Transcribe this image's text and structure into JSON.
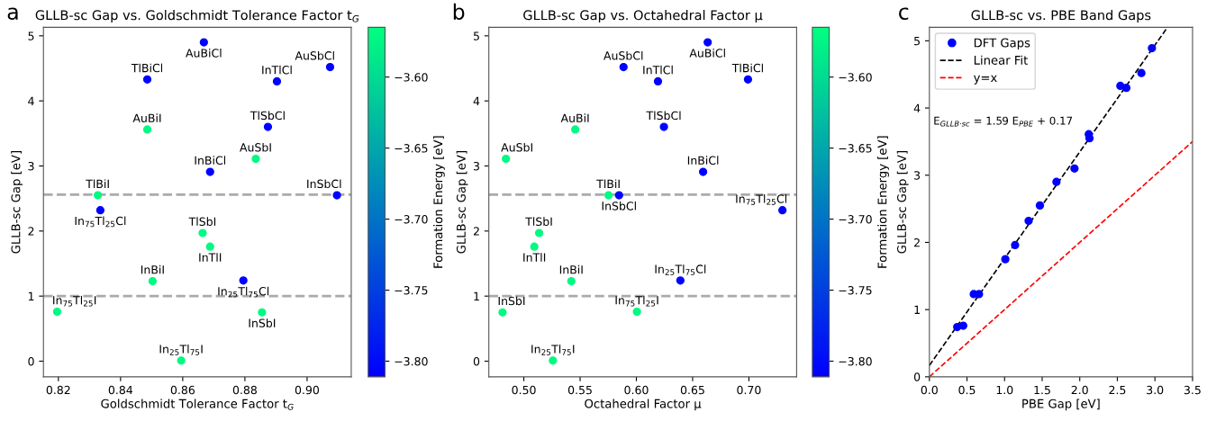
{
  "chart_data": [
    {
      "type": "scatter",
      "title": "GLLB-sc Gap vs. Goldschmidt Tolerance Factor t$_{G}$",
      "xlabel": "Goldschmidt Tolerance Factor t$_{G}$",
      "ylabel": "GLLB-sc Gap [eV]",
      "clabel": "Formation Energy [eV]",
      "x": [
        0.8668,
        0.8486,
        0.8903,
        0.9074,
        0.8486,
        0.8874,
        0.8835,
        0.8688,
        0.8327,
        0.9096,
        0.8335,
        0.8664,
        0.8688,
        0.8503,
        0.8795,
        0.8196,
        0.8855,
        0.8595
      ],
      "values": [
        4.9,
        4.33,
        4.3,
        4.52,
        3.56,
        3.6,
        3.11,
        2.91,
        2.55,
        2.55,
        2.32,
        1.97,
        1.76,
        1.23,
        1.24,
        0.76,
        0.75,
        0.01
      ],
      "cvalues": [
        -3.81,
        -3.81,
        -3.81,
        -3.81,
        -3.57,
        -3.81,
        -3.57,
        -3.81,
        -3.57,
        -3.81,
        -3.81,
        -3.57,
        -3.57,
        -3.57,
        -3.81,
        -3.57,
        -3.57,
        -3.57
      ],
      "clim": [
        -3.811,
        -3.565
      ],
      "cticks": [
        {
          "value": -3.6,
          "label": "−3.60"
        },
        {
          "value": -3.65,
          "label": "−3.65"
        },
        {
          "value": -3.7,
          "label": "−3.70"
        },
        {
          "value": -3.75,
          "label": "−3.75"
        },
        {
          "value": -3.8,
          "label": "−3.80"
        }
      ],
      "xlim": [
        0.8152,
        0.9142
      ],
      "ylim": [
        -0.24,
        5.13
      ],
      "xticks": [
        {
          "value": 0.82,
          "label": "0.82"
        },
        {
          "value": 0.84,
          "label": "0.84"
        },
        {
          "value": 0.86,
          "label": "0.86"
        },
        {
          "value": 0.88,
          "label": "0.88"
        },
        {
          "value": 0.9,
          "label": "0.90"
        }
      ],
      "yticks": [
        0,
        1,
        2,
        3,
        4,
        5
      ],
      "ref_lines": [
        {
          "axis": "y",
          "value": 2.56,
          "color": "#aaaaaa",
          "line_style": "dashed"
        },
        {
          "axis": "y",
          "value": 1.0,
          "color": "#aaaaaa",
          "line_style": "dashed"
        }
      ],
      "marker": "circle",
      "grid": false,
      "legend": false,
      "annotations": [
        "a",
        {
          "text": "AuBiCl",
          "x": 0.8668,
          "y": 4.9
        },
        {
          "text": "TlBiCl",
          "x": 0.8486,
          "y": 4.33
        },
        {
          "text": "InTlCl",
          "x": 0.8903,
          "y": 4.3
        },
        {
          "text": "AuSbCl",
          "x": 0.9074,
          "y": 4.52
        },
        {
          "text": "AuBiI",
          "x": 0.8486,
          "y": 3.56
        },
        {
          "text": "TlSbCl",
          "x": 0.8874,
          "y": 3.6
        },
        {
          "text": "AuSbI",
          "x": 0.8835,
          "y": 3.11
        },
        {
          "text": "InBiCl",
          "x": 0.8688,
          "y": 2.91
        },
        {
          "text": "TlBiI",
          "x": 0.8327,
          "y": 2.55
        },
        {
          "text": "InSbCl",
          "x": 0.9096,
          "y": 2.55
        },
        {
          "text": "In$_{75}$Tl$_{25}$Cl",
          "x": 0.8335,
          "y": 2.32
        },
        {
          "text": "TlSbI",
          "x": 0.8664,
          "y": 1.97
        },
        {
          "text": "InTlI",
          "x": 0.8688,
          "y": 1.76
        },
        {
          "text": "InBiI",
          "x": 0.8503,
          "y": 1.23
        },
        {
          "text": "In$_{25}$Tl$_{75}$Cl",
          "x": 0.8795,
          "y": 1.24
        },
        {
          "text": "In$_{75}$Tl$_{25}$I",
          "x": 0.8196,
          "y": 0.76
        },
        {
          "text": "InSbI",
          "x": 0.8855,
          "y": 0.75
        },
        {
          "text": "In$_{25}$Tl$_{75}$I",
          "x": 0.8595,
          "y": 0.01
        }
      ]
    },
    {
      "type": "scatter",
      "title": "GLLB-sc Gap vs. Octahedral Factor μ",
      "xlabel": "Octahedral Factor μ",
      "ylabel": "GLLB-sc Gap [eV]",
      "clabel": "Formation Energy [eV]",
      "x": [
        0.6634,
        0.6992,
        0.6192,
        0.5886,
        0.5457,
        0.6245,
        0.4841,
        0.6593,
        0.5753,
        0.5846,
        0.7298,
        0.5136,
        0.5093,
        0.5422,
        0.6391,
        0.6005,
        0.4811,
        0.5258
      ],
      "values": [
        4.9,
        4.33,
        4.3,
        4.52,
        3.56,
        3.6,
        3.11,
        2.91,
        2.55,
        2.55,
        2.32,
        1.97,
        1.76,
        1.23,
        1.24,
        0.76,
        0.75,
        0.01
      ],
      "cvalues": [
        -3.81,
        -3.81,
        -3.81,
        -3.81,
        -3.57,
        -3.81,
        -3.57,
        -3.81,
        -3.57,
        -3.81,
        -3.81,
        -3.57,
        -3.57,
        -3.57,
        -3.81,
        -3.57,
        -3.57,
        -3.57
      ],
      "clim": [
        -3.811,
        -3.565
      ],
      "cticks": [
        {
          "value": -3.6,
          "label": "−3.60"
        },
        {
          "value": -3.65,
          "label": "−3.65"
        },
        {
          "value": -3.7,
          "label": "−3.70"
        },
        {
          "value": -3.75,
          "label": "−3.75"
        },
        {
          "value": -3.8,
          "label": "−3.80"
        }
      ],
      "xlim": [
        0.4689,
        0.7424
      ],
      "ylim": [
        -0.24,
        5.13
      ],
      "xticks": [
        {
          "value": 0.5,
          "label": "0.50"
        },
        {
          "value": 0.55,
          "label": "0.55"
        },
        {
          "value": 0.6,
          "label": "0.60"
        },
        {
          "value": 0.65,
          "label": "0.65"
        },
        {
          "value": 0.7,
          "label": "0.70"
        }
      ],
      "yticks": [
        0,
        1,
        2,
        3,
        4,
        5
      ],
      "ref_lines": [
        {
          "axis": "y",
          "value": 2.56,
          "color": "#aaaaaa",
          "line_style": "dashed"
        },
        {
          "axis": "y",
          "value": 1.0,
          "color": "#aaaaaa",
          "line_style": "dashed"
        }
      ],
      "marker": "circle",
      "grid": false,
      "legend": false,
      "annotations": [
        "b",
        {
          "text": "AuBiCl",
          "x": 0.6634,
          "y": 4.9
        },
        {
          "text": "TlBiCl",
          "x": 0.6992,
          "y": 4.33
        },
        {
          "text": "InTlCl",
          "x": 0.6192,
          "y": 4.3
        },
        {
          "text": "AuSbCl",
          "x": 0.5886,
          "y": 4.52
        },
        {
          "text": "AuBiI",
          "x": 0.5457,
          "y": 3.56
        },
        {
          "text": "TlSbCl",
          "x": 0.6245,
          "y": 3.6
        },
        {
          "text": "AuSbI",
          "x": 0.4841,
          "y": 3.11
        },
        {
          "text": "InBiCl",
          "x": 0.6593,
          "y": 2.91
        },
        {
          "text": "TlBiI",
          "x": 0.5753,
          "y": 2.55
        },
        {
          "text": "InSbCl",
          "x": 0.5846,
          "y": 2.55
        },
        {
          "text": "In$_{75}$Tl$_{25}$Cl",
          "x": 0.7298,
          "y": 2.32
        },
        {
          "text": "TlSbI",
          "x": 0.5136,
          "y": 1.97
        },
        {
          "text": "InTlI",
          "x": 0.5093,
          "y": 1.76
        },
        {
          "text": "InBiI",
          "x": 0.5422,
          "y": 1.23
        },
        {
          "text": "In$_{25}$Tl$_{75}$Cl",
          "x": 0.6391,
          "y": 1.24
        },
        {
          "text": "In$_{75}$Tl$_{25}$I",
          "x": 0.6005,
          "y": 0.76
        },
        {
          "text": "InSbI",
          "x": 0.4811,
          "y": 0.75
        },
        {
          "text": "In$_{25}$Tl$_{75}$I",
          "x": 0.5258,
          "y": 0.01
        }
      ]
    },
    {
      "type": "scatter",
      "title": "GLLB-sc vs. PBE Band Gaps",
      "xlabel": "PBE Gap [eV]",
      "ylabel": "GLLB-sc Gap [eV]",
      "xlim": [
        0,
        3.5
      ],
      "ylim": [
        0,
        5.2
      ],
      "xticks": [
        {
          "value": 0,
          "label": "0.0"
        },
        {
          "value": 0.5,
          "label": "0.5"
        },
        {
          "value": 1,
          "label": "1.0"
        },
        {
          "value": 1.5,
          "label": "1.5"
        },
        {
          "value": 2,
          "label": "2.0"
        },
        {
          "value": 2.5,
          "label": "2.5"
        },
        {
          "value": 3,
          "label": "3.0"
        },
        {
          "value": 3.5,
          "label": "3.5"
        }
      ],
      "yticks": [
        0,
        1,
        2,
        3,
        4,
        5
      ],
      "legend": "top left",
      "grid": false,
      "series": [
        {
          "type": "scatter",
          "name": "DFT Gaps",
          "color": "#0000ff",
          "marker": "circle",
          "x": [
            0.37,
            0.45,
            0.59,
            0.66,
            1.01,
            1.14,
            1.32,
            1.47,
            1.69,
            1.93,
            2.12,
            2.13,
            2.54,
            2.62,
            2.82,
            2.96
          ],
          "values": [
            0.74,
            0.76,
            1.23,
            1.23,
            1.75,
            1.96,
            2.32,
            2.55,
            2.9,
            3.1,
            3.61,
            3.55,
            4.33,
            4.3,
            4.52,
            4.89
          ]
        },
        {
          "type": "line",
          "name": "Linear Fit",
          "color": "#000000",
          "line_style": "dashed",
          "x": [
            0,
            3.16
          ],
          "values": [
            0.17,
            5.19
          ]
        },
        {
          "type": "line",
          "name": "y=x",
          "color": "#ff0000",
          "line_style": "dashed",
          "x": [
            0,
            3.5
          ],
          "values": [
            0,
            3.5
          ]
        }
      ],
      "annotations": [
        "c",
        "E$_{GLLB·sc}$ = 1.59 E$_{PBE}$ + 0.17"
      ]
    }
  ]
}
